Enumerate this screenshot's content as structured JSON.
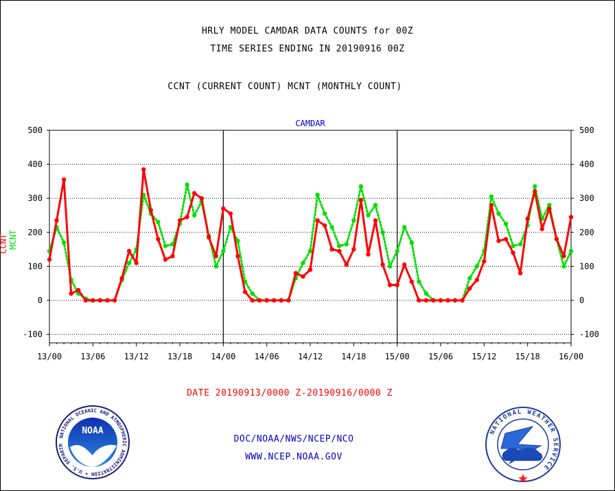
{
  "header": {
    "title_line1": "HRLY MODEL CAMDAR DATA COUNTS for 00Z",
    "title_line2": "TIME SERIES ENDING IN 20190916 00Z",
    "subtitle": "CCNT (CURRENT COUNT) MCNT (MONTHLY COUNT)"
  },
  "footer": {
    "date_range": "DATE 20190913/0000 Z-20190916/0000 Z",
    "org": "DOC/NOAA/NWS/NCEP/NCO",
    "url": "WWW.NCEP.NOAA.GOV"
  },
  "logos": {
    "noaa_text": "NOAA",
    "noaa_ring": "NATIONAL OCEANIC AND ATMOSPHERIC ADMINISTRATION • U.S. DEPARTMENT OF COMMERCE •",
    "nws_ring": "NATIONAL WEATHER SERVICE"
  },
  "colors": {
    "ccnt": "#ff0000",
    "mcnt": "#00e000",
    "title_blue": "#0000cc",
    "footer_red": "#ff0000",
    "footer_blue": "#0000cc"
  },
  "chart_data": {
    "type": "line",
    "title": "CAMDAR",
    "ylabel_series": [
      "CCNT",
      "MCNT"
    ],
    "ylim": [
      -125,
      500
    ],
    "yticks": [
      -100,
      0,
      100,
      200,
      300,
      400,
      500
    ],
    "xticks": [
      "13/00",
      "13/06",
      "13/12",
      "13/18",
      "14/00",
      "14/06",
      "14/12",
      "14/18",
      "15/00",
      "15/06",
      "15/12",
      "15/18",
      "16/00"
    ],
    "xlim_hours": [
      0,
      72
    ],
    "grid": true,
    "day_separators_hours": [
      24,
      48
    ],
    "series": [
      {
        "name": "CCNT",
        "style": "solid",
        "color": "#ff0000",
        "values": [
          120,
          235,
          355,
          20,
          30,
          0,
          0,
          0,
          0,
          0,
          65,
          145,
          110,
          385,
          265,
          180,
          120,
          130,
          235,
          245,
          315,
          300,
          185,
          130,
          270,
          255,
          130,
          25,
          0,
          0,
          0,
          0,
          0,
          0,
          80,
          70,
          90,
          235,
          220,
          150,
          145,
          105,
          150,
          295,
          135,
          235,
          105,
          45,
          45,
          105,
          55,
          0,
          0,
          0,
          0,
          0,
          0,
          0,
          35,
          60,
          115,
          280,
          175,
          180,
          140,
          80,
          240,
          320,
          210,
          270,
          180,
          130,
          245
        ]
      },
      {
        "name": "MCNT",
        "style": "dotted",
        "color": "#00e000",
        "values": [
          145,
          215,
          170,
          60,
          20,
          5,
          0,
          0,
          0,
          0,
          60,
          110,
          150,
          310,
          255,
          230,
          160,
          165,
          225,
          340,
          250,
          290,
          190,
          100,
          145,
          215,
          175,
          55,
          20,
          0,
          0,
          0,
          0,
          0,
          65,
          110,
          145,
          310,
          255,
          215,
          160,
          165,
          235,
          335,
          250,
          280,
          200,
          100,
          145,
          215,
          170,
          55,
          20,
          0,
          0,
          0,
          0,
          0,
          65,
          100,
          145,
          305,
          255,
          225,
          160,
          165,
          220,
          335,
          240,
          280,
          180,
          100,
          145
        ]
      }
    ]
  }
}
